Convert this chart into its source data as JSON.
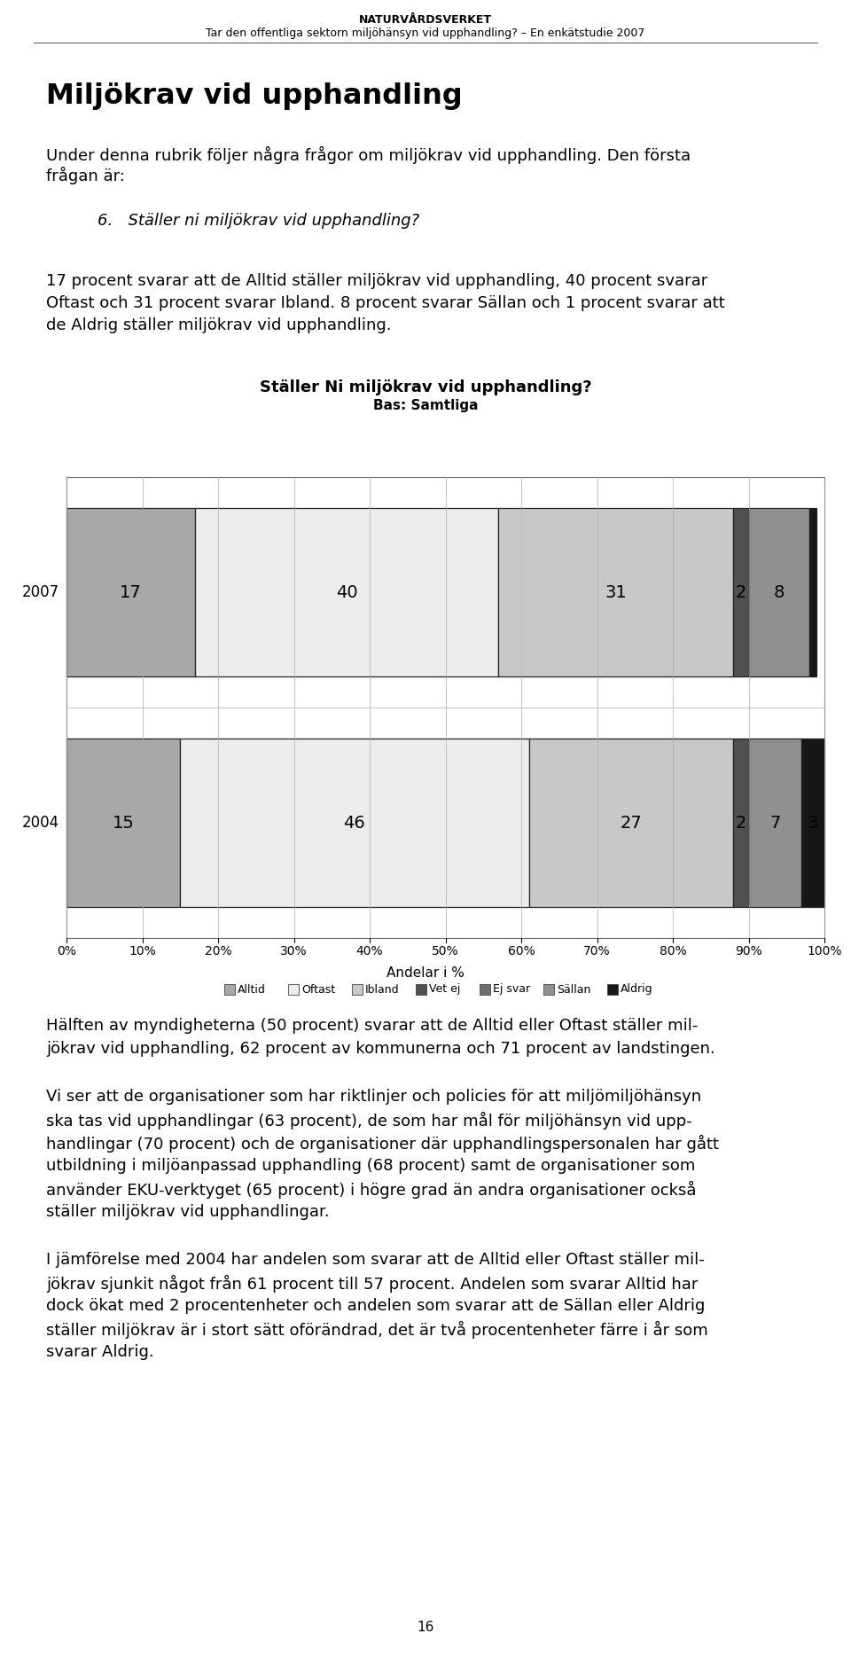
{
  "header_title": "NATURVÅRDSVERKET",
  "header_subtitle": "Tar den offentliga sektorn miljöhänsyn vid upphandling? – En enkätstudie 2007",
  "main_title": "Miljökrav vid upphandling",
  "intro_line1": "Under denna rubrik följer några frågor om miljökrav vid upphandling. Den första",
  "intro_line2": "frågan är:",
  "question_label": "6.   Ställer ni miljökrav vid upphandling?",
  "body1_lines": [
    "17 procent svarar att de Alltid ställer miljökrav vid upphandling, 40 procent svarar",
    "Oftast och 31 procent svarar Ibland. 8 procent svarar Sällan och 1 procent svarar att",
    "de Aldrig ställer miljökrav vid upphandling."
  ],
  "chart_title": "Ställer Ni miljökrav vid upphandling?",
  "chart_subtitle": "Bas: Samtliga",
  "values_2007": [
    17,
    40,
    31,
    2,
    8,
    1
  ],
  "values_2004": [
    15,
    46,
    27,
    2,
    7,
    3
  ],
  "seg_colors": [
    "#a8a8a8",
    "#ececec",
    "#c8c8c8",
    "#505050",
    "#909090",
    "#161616"
  ],
  "legend_colors": [
    "#a8a8a8",
    "#ececec",
    "#c8c8c8",
    "#505050",
    "#707070",
    "#909090",
    "#161616"
  ],
  "legend_labels": [
    "Alltid",
    "Oftast",
    "Ibland",
    "Vet ej",
    "Ej svar",
    "Sällan",
    "Aldrig"
  ],
  "xlabel": "Andelar i %",
  "body2_lines": [
    "Hälften av myndigheterna (50 procent) svarar att de Alltid eller Oftast ställer mil-",
    "jökrav vid upphandling, 62 procent av kommunerna och 71 procent av landstingen."
  ],
  "body3_lines": [
    "Vi ser att de organisationer som har riktlinjer och policies för att miljömiljöhänsyn",
    "ska tas vid upphandlingar (63 procent), de som har mål för miljöhänsyn vid upp-",
    "handlingar (70 procent) och de organisationer där upphandlingspersonalen har gått",
    "utbildning i miljöanpassad upphandling (68 procent) samt de organisationer som",
    "använder EKU-verktyget (65 procent) i högre grad än andra organisationer också",
    "ställer miljökrav vid upphandlingar."
  ],
  "body4_lines": [
    "I jämförelse med 2004 har andelen som svarar att de Alltid eller Oftast ställer mil-",
    "jökrav sjunkit något från 61 procent till 57 procent. Andelen som svarar Alltid har",
    "dock ökat med 2 procentenheter och andelen som svarar att de Sällan eller Aldrig",
    "ställer miljökrav är i stort sätt oförändrad, det är två procentenheter färre i år som",
    "svarar Aldrig."
  ],
  "page_number": "16",
  "bg": "#ffffff"
}
